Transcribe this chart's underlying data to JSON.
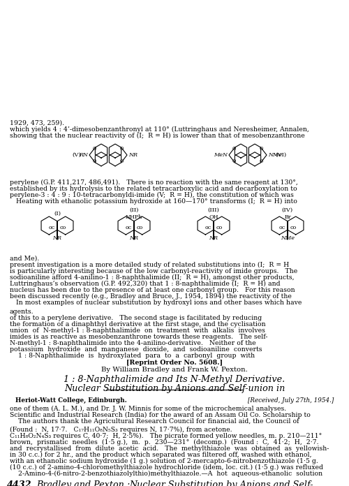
{
  "bg_color": "#ffffff",
  "header_num": "4432",
  "header_italic": "Bradley and Pexton :  Nuclear Substitution by Anions and Self-",
  "top_para": [
    "    2-Amino-4-(6-nitro-2-benzothiazolylthio)methylthiazole.—A  hot  aqueous-ethanolic  solution",
    "(10 c.c.) of 2-amino-4-chloromethylthiazole hydrochloride (idem, loc. cit.) (1·5 g.) was refluxed",
    "with an ethanolic sodium hydroxide (1 g.) solution of 2-mercapto-6-nitrobenzothiazole (1·5 g.",
    "in 30 c.c.) for 2 hr., and the product which separated was filtered off, washed with ethanol,",
    "and  recrystallised  from  dilute  acetic  acid.   The  methylthiazole  was  obtained  as  yellowish-",
    "brown,  prismatic  needles  (1·5 g.),  m.  p.  230—231°  (decomp.)  (Found :  C,  41·2;  H,  2·7.",
    "C₁₁H₈O₂N₄S₃ requires C, 40·7;  H, 2·5%).   The picrate formed yellow needles, m. p. 210—211°",
    "(Found :  N, 17·7.   C₁₇H₁₁O₈N₅S₃ requires N, 17·7%), from acetone."
  ],
  "ack_para": [
    "    The authors thank the Agricultural Research Council for financial aid, the Council of",
    "Scientific and Industrial Research (India) for the award of an Assam Oil Co. Scholarship to",
    "one of them (A. L. M.), and Dr. J. W. Minnis for some of the microchemical analyses."
  ],
  "inst_left": "Heriot-Watt College, Edinburgh.",
  "inst_right": "[Received, July 27th, 1954.]",
  "art_title1": "Nuclear Substitution by Anions and Self-union in",
  "art_title2": "1 : 8-Naphthalimide and Its N-Methyl Derivative.",
  "byline": "By William Bradley and Frank W. Pexton.",
  "reprint": "[Reprint Order No. 5608.]",
  "abstract": [
    "    1 : 8-Naphthalimide  is  hydroxylated  para  to  a  carbonyl  group  with",
    "potassium  hydroxide  and  manganese  dioxide,  and  sodioaniline  converts",
    "N-methyl-1 : 8-naphthalimide into the 4-anilino-derivative.   Neither of the",
    "imides is as reactive as mesobenzanthrone towards these reagents.   The self-",
    "union  of  N-methyl-1 : 8-naphthalimide  on  treatment  with  alkalis  involves",
    "the formation of a dinaphthyl derivative at the first stage, and the cyclisation",
    "of this to a perylene derivative.   The second stage is facilitated by reducing",
    "agents."
  ],
  "body1": [
    "   In most examples of nuclear substitution by hydroxyl ions and other bases which have",
    "been discussed recently (e.g., Bradley and Bruce, J., 1954, 1894) the reactivity of the",
    "nucleus has been due to the presence of at least one carbonyl group.   For this reason",
    "Luttringhaus’s observation (G.P. 492,320) that 1 : 8-naphthalimide (I;  R = H) and",
    "sodioaniline afford 4-anilino-1 : 8-naphthalimide (II;  R = H), amongst other products,",
    "is particularly interesting because of the low carbonyl-reactivity of imide groups.   The",
    "present investigation is a more detailed study of related substitutions into (I;  R = H",
    "and Me)."
  ],
  "body2": [
    "   Heating with ethanolic potassium hydroxide at 160—170° transforms (I;  R = H) into",
    "perylene-3 : 4 : 9 : 10-tetracarbonyldi-imide (V;  R = H), the constitution of which was",
    "established by its hydrolysis to the related tetracarboxylic acid and decarboxylation to",
    "perylene (G.P. 411,217, 486,491).   There is no reaction with the same reagent at 130°,"
  ],
  "body3": [
    "showing that the nuclear reactivity of (I;  R = H) is lower than that of mesobenzanthrone",
    "which yields 4 : 4’-dimesobenzanthronyl at 110° (Luttringhaus and Neresheimer, Annalen,",
    "1929, 473, 259)."
  ]
}
